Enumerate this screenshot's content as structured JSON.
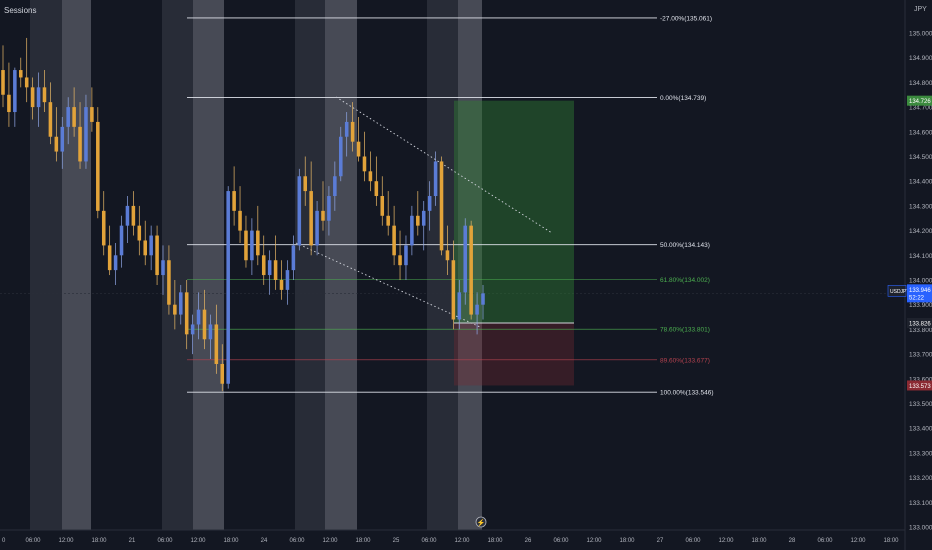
{
  "header": {
    "sessions_label": "Sessions"
  },
  "currency": "JPY",
  "colors": {
    "background": "#131722",
    "session_band": "rgba(120,123,134,0.22)",
    "session_band_strong": "rgba(150,153,163,0.40)",
    "bull": "#5b7cd6",
    "bear": "#e2a33a",
    "fib_white": "#e0e3eb",
    "fib_green": "#4caf50",
    "fib_red": "#b4424f",
    "profit_zone": "rgba(46,125,50,0.45)",
    "loss_zone": "rgba(120,40,50,0.35)",
    "axis_text": "#b2b5be",
    "price_tag_blue": "#2962ff",
    "price_tag_green": "#3b8a3e",
    "price_tag_red": "#8b2a33"
  },
  "price_axis": {
    "labels": [
      "135.000",
      "134.900",
      "134.800",
      "134.700",
      "134.600",
      "134.500",
      "134.400",
      "134.300",
      "134.200",
      "134.100",
      "134.000",
      "133.900",
      "133.800",
      "133.700",
      "133.600",
      "133.500",
      "133.400",
      "133.300",
      "133.200",
      "133.100",
      "133.000"
    ],
    "min": 133.0,
    "max": 135.06
  },
  "time_axis": {
    "labels": [
      "0",
      "06:00",
      "12:00",
      "18:00",
      "21",
      "06:00",
      "12:00",
      "18:00",
      "24",
      "06:00",
      "12:00",
      "18:00",
      "25",
      "06:00",
      "12:00",
      "18:00",
      "26",
      "06:00",
      "12:00",
      "18:00",
      "27",
      "06:00",
      "12:00",
      "18:00",
      "28",
      "06:00",
      "12:00",
      "18:00"
    ]
  },
  "fib_levels": [
    {
      "label": "-27.00%(135.061)",
      "price": 135.061,
      "color": "white"
    },
    {
      "label": "0.00%(134.739)",
      "price": 134.739,
      "color": "white"
    },
    {
      "label": "50.00%(134.143)",
      "price": 134.143,
      "color": "white"
    },
    {
      "label": "61.80%(134.002)",
      "price": 134.002,
      "color": "green"
    },
    {
      "label": "78.60%(133.801)",
      "price": 133.801,
      "color": "green"
    },
    {
      "label": "89.60%(133.677)",
      "price": 133.677,
      "color": "red"
    },
    {
      "label": "100.00%(133.546)",
      "price": 133.546,
      "color": "white"
    }
  ],
  "price_tags": [
    {
      "label": "134.726",
      "price": 134.726,
      "style": "green"
    },
    {
      "label": "USDJPY",
      "sub": "133.946",
      "sub2": "52:22",
      "price": 133.946,
      "style": "blue"
    },
    {
      "label": "133.826",
      "price": 133.826,
      "style": "dark"
    },
    {
      "label": "133.573",
      "price": 133.573,
      "style": "red"
    }
  ],
  "position": {
    "entry": 133.826,
    "target": 134.726,
    "stop": 133.573
  },
  "chart_data": {
    "type": "candlestick",
    "symbol": "USDJPY",
    "ylim": [
      133.0,
      135.06
    ],
    "candles": [
      [
        134.85,
        134.95,
        134.7,
        134.75
      ],
      [
        134.75,
        134.88,
        134.62,
        134.68
      ],
      [
        134.68,
        134.86,
        134.62,
        134.85
      ],
      [
        134.85,
        134.9,
        134.78,
        134.82
      ],
      [
        134.82,
        134.98,
        134.72,
        134.78
      ],
      [
        134.78,
        134.82,
        134.65,
        134.7
      ],
      [
        134.7,
        134.84,
        134.62,
        134.78
      ],
      [
        134.78,
        134.85,
        134.68,
        134.72
      ],
      [
        134.72,
        134.8,
        134.55,
        134.58
      ],
      [
        134.58,
        134.7,
        134.48,
        134.52
      ],
      [
        134.52,
        134.66,
        134.45,
        134.62
      ],
      [
        134.62,
        134.74,
        134.55,
        134.7
      ],
      [
        134.7,
        134.78,
        134.58,
        134.62
      ],
      [
        134.62,
        134.72,
        134.45,
        134.48
      ],
      [
        134.48,
        134.75,
        134.45,
        134.7
      ],
      [
        134.7,
        134.78,
        134.6,
        134.64
      ],
      [
        134.64,
        134.7,
        134.25,
        134.28
      ],
      [
        134.28,
        134.36,
        134.1,
        134.14
      ],
      [
        134.14,
        134.22,
        134.02,
        134.04
      ],
      [
        134.04,
        134.15,
        133.98,
        134.1
      ],
      [
        134.1,
        134.26,
        134.05,
        134.22
      ],
      [
        134.22,
        134.34,
        134.15,
        134.3
      ],
      [
        134.3,
        134.36,
        134.18,
        134.22
      ],
      [
        134.22,
        134.3,
        134.1,
        134.16
      ],
      [
        134.16,
        134.24,
        134.06,
        134.1
      ],
      [
        134.1,
        134.22,
        134.04,
        134.18
      ],
      [
        134.18,
        134.22,
        133.98,
        134.02
      ],
      [
        134.02,
        134.14,
        133.94,
        134.08
      ],
      [
        134.08,
        134.14,
        133.86,
        133.9
      ],
      [
        133.9,
        134.0,
        133.8,
        133.86
      ],
      [
        133.86,
        133.98,
        133.82,
        133.95
      ],
      [
        133.95,
        134.0,
        133.72,
        133.78
      ],
      [
        133.78,
        133.86,
        133.7,
        133.82
      ],
      [
        133.82,
        133.95,
        133.76,
        133.88
      ],
      [
        133.88,
        133.96,
        133.72,
        133.76
      ],
      [
        133.76,
        133.86,
        133.68,
        133.82
      ],
      [
        133.82,
        133.9,
        133.62,
        133.66
      ],
      [
        133.66,
        133.74,
        133.55,
        133.58
      ],
      [
        133.58,
        134.38,
        133.56,
        134.36
      ],
      [
        134.36,
        134.46,
        134.22,
        134.28
      ],
      [
        134.28,
        134.38,
        134.15,
        134.2
      ],
      [
        134.2,
        134.26,
        134.05,
        134.08
      ],
      [
        134.08,
        134.25,
        134.02,
        134.2
      ],
      [
        134.2,
        134.3,
        134.06,
        134.1
      ],
      [
        134.1,
        134.18,
        133.98,
        134.02
      ],
      [
        134.02,
        134.12,
        133.94,
        134.08
      ],
      [
        134.08,
        134.18,
        133.96,
        134.0
      ],
      [
        134.0,
        134.08,
        133.92,
        133.96
      ],
      [
        133.96,
        134.08,
        133.9,
        134.04
      ],
      [
        134.04,
        134.18,
        134.0,
        134.14
      ],
      [
        134.14,
        134.45,
        134.12,
        134.42
      ],
      [
        134.42,
        134.5,
        134.3,
        134.36
      ],
      [
        134.36,
        134.48,
        134.1,
        134.14
      ],
      [
        134.14,
        134.32,
        134.1,
        134.28
      ],
      [
        134.28,
        134.4,
        134.2,
        134.24
      ],
      [
        134.24,
        134.38,
        134.18,
        134.34
      ],
      [
        134.34,
        134.48,
        134.28,
        134.42
      ],
      [
        134.42,
        134.62,
        134.4,
        134.58
      ],
      [
        134.58,
        134.68,
        134.5,
        134.64
      ],
      [
        134.64,
        134.72,
        134.52,
        134.56
      ],
      [
        134.56,
        134.66,
        134.48,
        134.5
      ],
      [
        134.5,
        134.6,
        134.4,
        134.44
      ],
      [
        134.44,
        134.52,
        134.36,
        134.4
      ],
      [
        134.4,
        134.5,
        134.3,
        134.34
      ],
      [
        134.34,
        134.42,
        134.22,
        134.26
      ],
      [
        134.26,
        134.36,
        134.18,
        134.22
      ],
      [
        134.22,
        134.3,
        134.06,
        134.1
      ],
      [
        134.1,
        134.2,
        134.0,
        134.06
      ],
      [
        134.06,
        134.18,
        134.0,
        134.14
      ],
      [
        134.14,
        134.3,
        134.1,
        134.26
      ],
      [
        134.26,
        134.36,
        134.18,
        134.22
      ],
      [
        134.22,
        134.32,
        134.12,
        134.28
      ],
      [
        134.28,
        134.4,
        134.2,
        134.34
      ],
      [
        134.34,
        134.52,
        134.3,
        134.48
      ],
      [
        134.48,
        134.5,
        134.1,
        134.12
      ],
      [
        134.12,
        134.22,
        134.02,
        134.08
      ],
      [
        134.08,
        134.16,
        133.8,
        133.84
      ],
      [
        133.84,
        134.0,
        133.8,
        133.95
      ],
      [
        133.95,
        134.25,
        133.9,
        134.22
      ],
      [
        134.22,
        134.24,
        133.84,
        133.86
      ],
      [
        133.86,
        133.95,
        133.78,
        133.9
      ],
      [
        133.9,
        133.98,
        133.84,
        133.946
      ]
    ]
  }
}
